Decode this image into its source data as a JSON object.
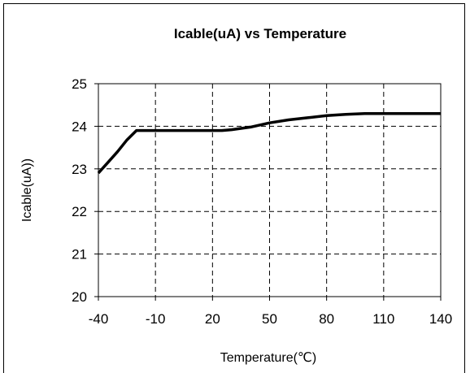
{
  "chart_data": {
    "type": "line",
    "title": "Icable(uA) vs Temperature",
    "xlabel": "Temperature(℃)",
    "ylabel": "Icable(uA))",
    "x_ticks": [
      "-40",
      "-10",
      "20",
      "50",
      "80",
      "110",
      "140"
    ],
    "y_ticks": [
      "20",
      "21",
      "22",
      "23",
      "24",
      "25"
    ],
    "xlim": [
      -40,
      140
    ],
    "ylim": [
      20,
      25
    ],
    "grid": true,
    "legend": "none",
    "series": [
      {
        "color": "#000000",
        "x": [
          -40,
          -35,
          -30,
          -25,
          -20,
          -15,
          -10,
          0,
          10,
          20,
          25,
          30,
          40,
          50,
          60,
          70,
          80,
          90,
          100,
          110,
          120,
          130,
          140
        ],
        "y": [
          22.9,
          23.15,
          23.4,
          23.68,
          23.9,
          23.9,
          23.9,
          23.9,
          23.9,
          23.9,
          23.9,
          23.92,
          23.98,
          24.08,
          24.15,
          24.2,
          24.25,
          24.28,
          24.3,
          24.3,
          24.3,
          24.3,
          24.3
        ]
      }
    ]
  }
}
